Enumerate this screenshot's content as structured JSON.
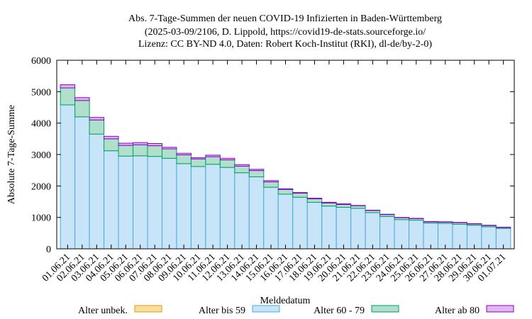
{
  "chart_data": {
    "type": "bar",
    "title": [
      "Abs. 7-Tage-Summen der neuen COVID-19 Infizierten in Baden-Württemberg",
      "(2025-03-09/2106, D. Lippold, https://covid19-de-stats.sourceforge.io/",
      "Lizenz: CC BY-ND 4.0, Daten: Robert Koch-Institut (RKI), dl-de/by-2-0)"
    ],
    "xlabel": "Meldedatum",
    "ylabel": "Absolute 7-Tage-Summe",
    "ylim": [
      0,
      6000
    ],
    "yticks": [
      0,
      1000,
      2000,
      3000,
      4000,
      5000,
      6000
    ],
    "categories": [
      "01.06.21",
      "02.06.21",
      "03.06.21",
      "04.06.21",
      "05.06.21",
      "06.06.21",
      "07.06.21",
      "08.06.21",
      "09.06.21",
      "10.06.21",
      "11.06.21",
      "12.06.21",
      "13.06.21",
      "14.06.21",
      "15.06.21",
      "16.06.21",
      "17.06.21",
      "18.06.21",
      "19.06.21",
      "20.06.21",
      "21.06.21",
      "22.06.21",
      "23.06.21",
      "24.06.21",
      "25.06.21",
      "26.06.21",
      "27.06.21",
      "28.06.21",
      "29.06.21",
      "30.06.21",
      "01.07.21"
    ],
    "stacked": true,
    "series": [
      {
        "name": "Alter unbek.",
        "color": "#f5dea0",
        "stroke": "#e0a000",
        "values": [
          0,
          0,
          0,
          0,
          0,
          0,
          0,
          0,
          0,
          0,
          0,
          0,
          0,
          0,
          0,
          0,
          0,
          0,
          0,
          0,
          0,
          0,
          0,
          0,
          0,
          0,
          0,
          0,
          0,
          0,
          0
        ]
      },
      {
        "name": "Alter bis 59",
        "color": "#c8e4f8",
        "stroke": "#4aa8dc",
        "values": [
          4580,
          4200,
          3650,
          3120,
          2950,
          2960,
          2940,
          2880,
          2710,
          2620,
          2690,
          2590,
          2420,
          2290,
          1960,
          1740,
          1640,
          1480,
          1360,
          1320,
          1290,
          1150,
          1030,
          930,
          910,
          820,
          810,
          780,
          750,
          700,
          650
        ]
      },
      {
        "name": "Alter 60 - 79",
        "color": "#b0e0cc",
        "stroke": "#009e60",
        "values": [
          540,
          520,
          450,
          380,
          340,
          350,
          340,
          300,
          280,
          240,
          240,
          240,
          210,
          200,
          170,
          150,
          130,
          110,
          100,
          90,
          80,
          70,
          60,
          60,
          50,
          40,
          40,
          50,
          40,
          40,
          30
        ]
      },
      {
        "name": "Alter ab 80",
        "color": "#e0b8f0",
        "stroke": "#8800cc",
        "values": [
          100,
          90,
          80,
          80,
          70,
          70,
          70,
          50,
          50,
          40,
          50,
          50,
          50,
          40,
          40,
          20,
          20,
          20,
          20,
          20,
          10,
          10,
          10,
          10,
          10,
          10,
          10,
          10,
          10,
          10,
          10
        ]
      }
    ],
    "grid": false,
    "legend": "bottom"
  }
}
